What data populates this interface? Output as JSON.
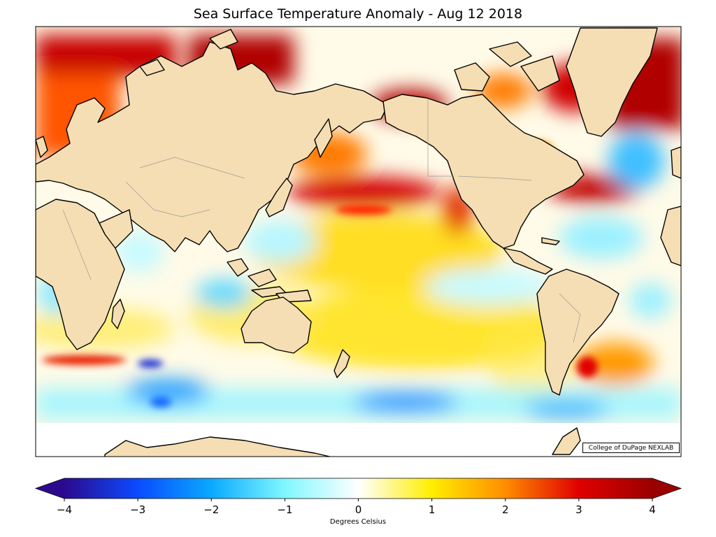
{
  "title": "Sea Surface Temperature Anomaly - Aug 12 2018",
  "credit": "College of DuPage NEXLAB",
  "colorbar": {
    "label": "Degrees Celsius",
    "min": -4,
    "max": 4,
    "ticks": [
      {
        "value": -4,
        "label": "−4"
      },
      {
        "value": -3,
        "label": "−3"
      },
      {
        "value": -2,
        "label": "−2"
      },
      {
        "value": -1,
        "label": "−1"
      },
      {
        "value": 0,
        "label": "0"
      },
      {
        "value": 1,
        "label": "1"
      },
      {
        "value": 2,
        "label": "2"
      },
      {
        "value": 3,
        "label": "3"
      },
      {
        "value": 4,
        "label": "4"
      }
    ],
    "stops": [
      {
        "value": -4,
        "color": "#2c0a8f"
      },
      {
        "value": -3,
        "color": "#0a4bff"
      },
      {
        "value": -2,
        "color": "#0aa9ff"
      },
      {
        "value": -1,
        "color": "#7ff7ff"
      },
      {
        "value": 0,
        "color": "#ffffff"
      },
      {
        "value": 1,
        "color": "#ffee00"
      },
      {
        "value": 2,
        "color": "#ff8c00"
      },
      {
        "value": 3,
        "color": "#e00000"
      },
      {
        "value": 4,
        "color": "#9b0000"
      }
    ]
  },
  "colors": {
    "land": "#f5deb3",
    "coast": "#000000",
    "border": "#9a9a9a"
  }
}
